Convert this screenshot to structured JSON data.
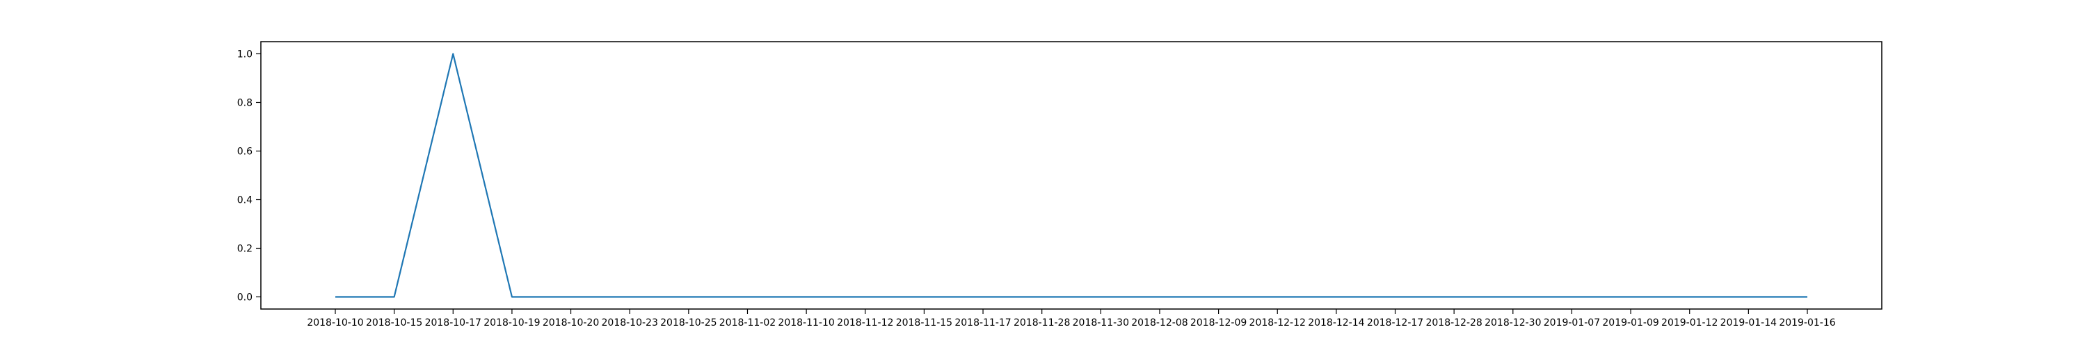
{
  "chart_data": {
    "type": "line",
    "title": "",
    "xlabel": "",
    "ylabel": "",
    "categories": [
      "2018-10-10",
      "2018-10-15",
      "2018-10-17",
      "2018-10-19",
      "2018-10-20",
      "2018-10-23",
      "2018-10-25",
      "2018-11-02",
      "2018-11-10",
      "2018-11-12",
      "2018-11-15",
      "2018-11-17",
      "2018-11-28",
      "2018-11-30",
      "2018-12-08",
      "2018-12-09",
      "2018-12-12",
      "2018-12-14",
      "2018-12-17",
      "2018-12-28",
      "2018-12-30",
      "2019-01-07",
      "2019-01-09",
      "2019-01-12",
      "2019-01-14",
      "2019-01-16"
    ],
    "series": [
      {
        "values": [
          0,
          0,
          1,
          0,
          0,
          0,
          0,
          0,
          0,
          0,
          0,
          0,
          0,
          0,
          0,
          0,
          0,
          0,
          0,
          0,
          0,
          0,
          0,
          0,
          0,
          0
        ],
        "color": "#1f77b4"
      }
    ],
    "ylim": [
      -0.05,
      1.05
    ],
    "yticks": [
      "0.0",
      "0.2",
      "0.4",
      "0.6",
      "0.8",
      "1.0"
    ],
    "grid": false,
    "legend": "none"
  }
}
